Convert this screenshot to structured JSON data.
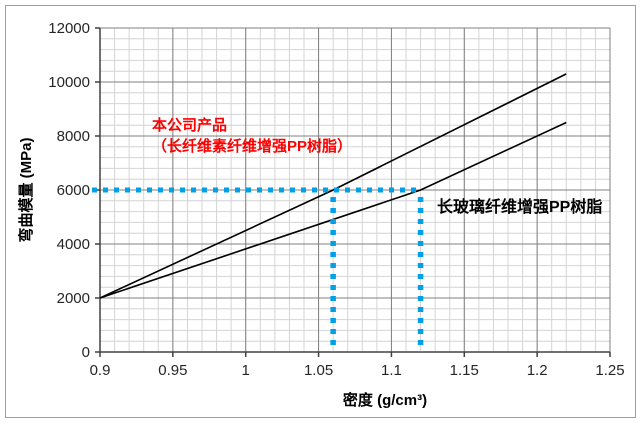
{
  "figure": {
    "background": "#FFFFFF",
    "border_color": "#9E9E9E"
  },
  "chart_data": {
    "type": "line",
    "title": "",
    "xlabel": "密度 (g/cm³)",
    "ylabel": "弯曲模量 (MPa)",
    "xlim": [
      0.9,
      1.25
    ],
    "ylim": [
      0,
      12000
    ],
    "x_tick_values": [
      0.9,
      0.95,
      1,
      1.05,
      1.1,
      1.15,
      1.2,
      1.25
    ],
    "x_tick_labels": [
      "0.9",
      "0.95",
      "1",
      "1.05",
      "1.1",
      "1.15",
      "1.2",
      "1.25"
    ],
    "y_tick_values": [
      0,
      2000,
      4000,
      6000,
      8000,
      10000,
      12000
    ],
    "y_tick_labels": [
      "0",
      "2000",
      "4000",
      "6000",
      "8000",
      "10000",
      "12000"
    ],
    "x_minor_step": 0.01,
    "y_minor_step": 400,
    "grid": {
      "minor_color": "#D4D4D4",
      "major_color": "#808080",
      "axis_color": "#404040",
      "tick_text_color": "#262626"
    },
    "series": [
      {
        "name": "本公司产品（长纤维素纤维增强PP树脂）",
        "color": "#000000",
        "points": [
          [
            0.9,
            2000
          ],
          [
            1.06,
            6000
          ],
          [
            1.22,
            10300
          ]
        ]
      },
      {
        "name": "长玻璃纤维增强PP树脂",
        "color": "#000000",
        "points": [
          [
            0.9,
            2000
          ],
          [
            1.12,
            6000
          ],
          [
            1.22,
            8500
          ]
        ]
      }
    ],
    "annotations": {
      "our_product": {
        "line1": "本公司产品",
        "line2": "（长纤维素纤维增强PP树脂）",
        "color": "#FF0000"
      },
      "glass_fiber": {
        "text": "长玻璃纤维增强PP树脂",
        "color": "#000000"
      }
    },
    "guide_lines": {
      "color": "#00A0E8",
      "y_value": 6000,
      "x_values": [
        1.06,
        1.12
      ],
      "dash": [
        5,
        6
      ],
      "width": 5
    }
  }
}
